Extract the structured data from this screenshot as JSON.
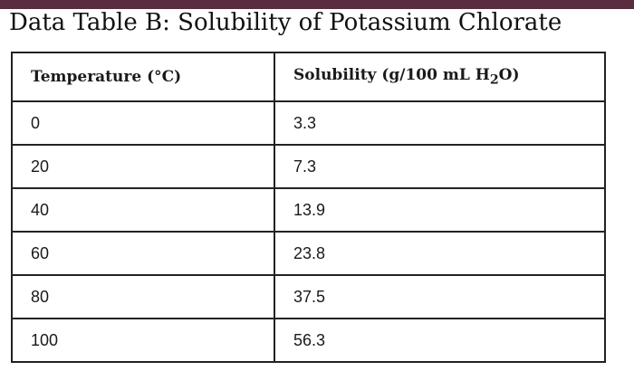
{
  "colors": {
    "top_bar": "#5a2c40",
    "border": "#222222",
    "text": "#1a1a1a"
  },
  "title": "Data Table B: Solubility of Potassium Chlorate",
  "table": {
    "headers": {
      "temperature": "Temperature (°C)",
      "solubility_prefix": "Solubility (g/100 mL H",
      "solubility_subscript": "2",
      "solubility_suffix": "O)"
    },
    "rows": [
      {
        "temperature": "0",
        "solubility": "3.3"
      },
      {
        "temperature": "20",
        "solubility": "7.3"
      },
      {
        "temperature": "40",
        "solubility": "13.9"
      },
      {
        "temperature": "60",
        "solubility": "23.8"
      },
      {
        "temperature": "80",
        "solubility": "37.5"
      },
      {
        "temperature": "100",
        "solubility": "56.3"
      }
    ]
  }
}
